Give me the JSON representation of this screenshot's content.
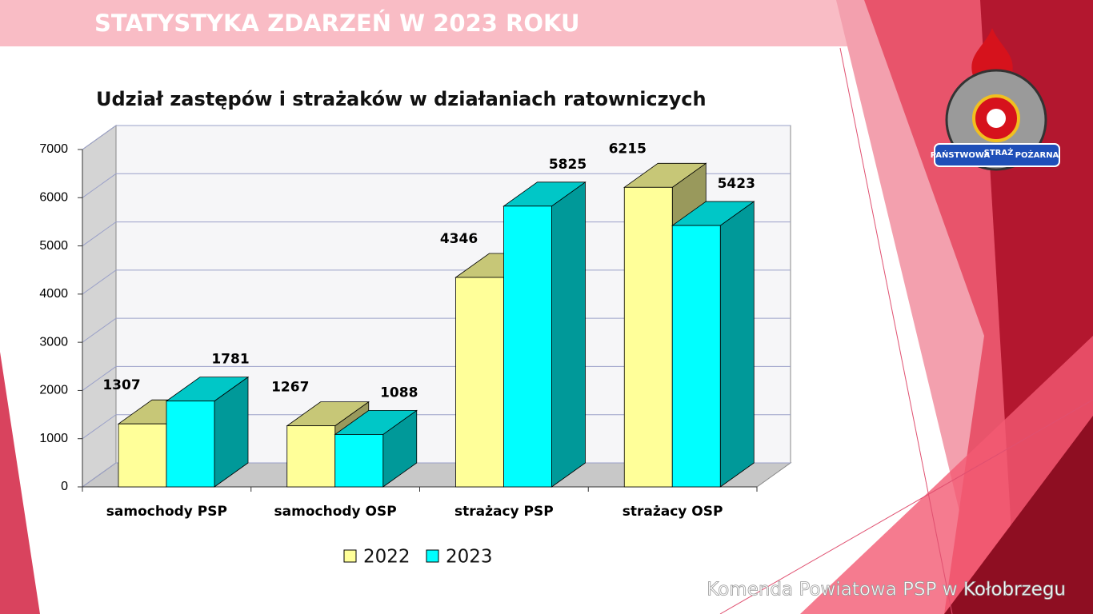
{
  "header": {
    "title": "STATYSTYKA ZDARZEŃ W 2023 ROKU"
  },
  "logo": {
    "texts": [
      "PAŃSTWOWA",
      "STRAŻ",
      "POŻARNA"
    ]
  },
  "footer": "Komenda Powiatowa PSP w Kołobrzegu",
  "chart_data": {
    "type": "bar3d",
    "title": "Udział zastępów i strażaków w działaniach ratowniczych",
    "categories": [
      "samochody PSP",
      "samochody OSP",
      "strażacy PSP",
      "strażacy OSP"
    ],
    "series": [
      {
        "name": "2022",
        "color": "#ffff99",
        "values": [
          1307,
          1267,
          4346,
          6215
        ]
      },
      {
        "name": "2023",
        "color": "#00ffff",
        "values": [
          1781,
          1088,
          5825,
          5423
        ]
      }
    ],
    "ylim": [
      0,
      7000
    ],
    "yticks": [
      0,
      1000,
      2000,
      3000,
      4000,
      5000,
      6000,
      7000
    ],
    "grid": true,
    "legend": "bottom"
  }
}
